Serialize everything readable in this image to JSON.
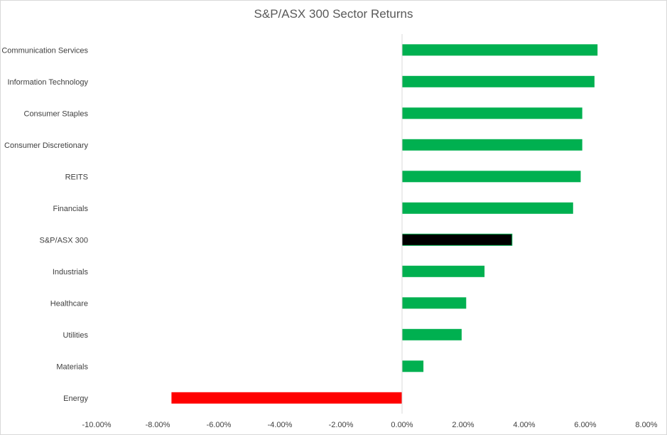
{
  "chart_data": {
    "type": "bar",
    "orientation": "horizontal",
    "title": "S&P/ASX 300 Sector Returns",
    "categories": [
      "Communication Services",
      "Information Technology",
      "Consumer Staples",
      "Consumer Discretionary",
      "REITS",
      "Financials",
      "S&P/ASX 300",
      "Industrials",
      "Healthcare",
      "Utilities",
      "Materials",
      "Energy"
    ],
    "values": [
      6.4,
      6.3,
      5.9,
      5.9,
      5.85,
      5.6,
      3.6,
      2.7,
      2.1,
      1.95,
      0.7,
      -7.55
    ],
    "bar_colors": [
      "#00b050",
      "#00b050",
      "#00b050",
      "#00b050",
      "#00b050",
      "#00b050",
      "#000000",
      "#00b050",
      "#00b050",
      "#00b050",
      "#00b050",
      "#ff0000"
    ],
    "xlim": [
      -10,
      8
    ],
    "xticks": [
      -10,
      -8,
      -6,
      -4,
      -2,
      0,
      2,
      4,
      6,
      8
    ],
    "xtick_labels": [
      "-10.00%",
      "-8.00%",
      "-6.00%",
      "-4.00%",
      "-2.00%",
      "0.00%",
      "2.00%",
      "4.00%",
      "6.00%",
      "8.00%"
    ],
    "xlabel": "",
    "ylabel": "",
    "grid": false,
    "legend": "none"
  }
}
